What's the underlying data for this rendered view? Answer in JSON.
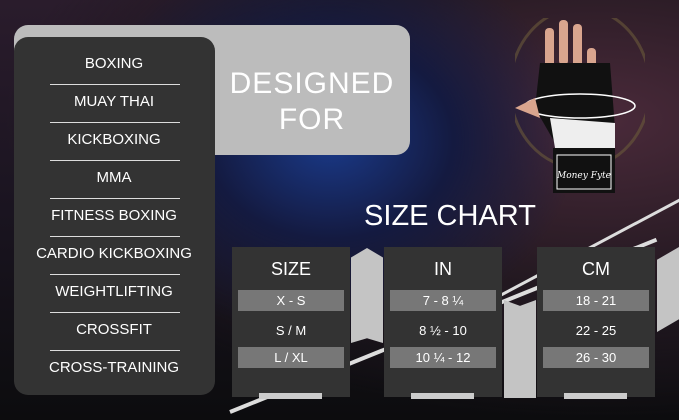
{
  "designed_for": {
    "line1": "DESIGNED",
    "line2": "FOR"
  },
  "sports": [
    "BOXING",
    "MUAY THAI",
    "KICKBOXING",
    "MMA",
    "FITNESS BOXING",
    "CARDIO KICKBOXING",
    "WEIGHTLIFTING",
    "CROSSFIT",
    "CROSS-TRAINING"
  ],
  "size_chart": {
    "title": "SIZE CHART",
    "columns": [
      {
        "header": "SIZE",
        "values": [
          "X - S",
          "S / M",
          "L / XL"
        ]
      },
      {
        "header": "IN",
        "values": [
          "7 - 8 ¼",
          "8 ½ -  10",
          "10 ¼ - 12"
        ]
      },
      {
        "header": "CM",
        "values": [
          "18 - 21",
          "22 - 25",
          "26 - 30"
        ]
      }
    ]
  },
  "logo_text": "Money Fyte"
}
